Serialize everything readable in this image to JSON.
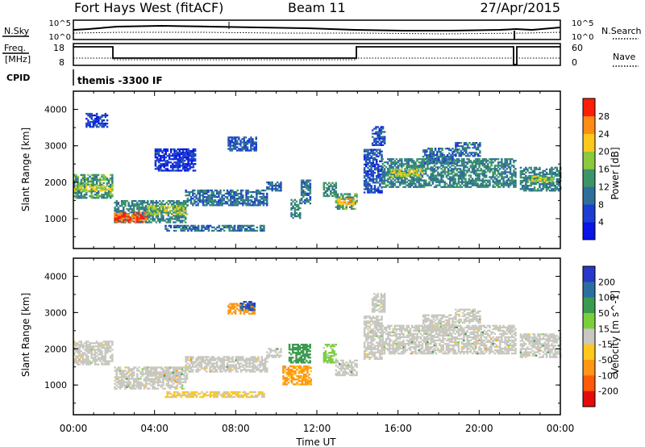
{
  "header": {
    "station": "Fort Hays West (fitACF)",
    "beam": "Beam 11",
    "date": "27/Apr/2015"
  },
  "noise_panel": {
    "left_label": "N.Sky",
    "left_ticks": [
      "10^5",
      "10^0"
    ],
    "right_ticks": [
      "10^5",
      "10^0"
    ],
    "right_label": "N.Search"
  },
  "freq_panel": {
    "left_label_1": "Freq.",
    "left_label_2": "[MHz]",
    "left_ticks": [
      "18",
      "8"
    ],
    "right_ticks": [
      "60",
      "0"
    ],
    "right_label": "Nave"
  },
  "cpid": {
    "label": "CPID",
    "program": "themis -3300 IF"
  },
  "colors": {
    "frame": "#000000",
    "ground_scatter": "#c8c8c0"
  },
  "chart_data": [
    {
      "type": "heatmap",
      "title": "",
      "xlabel": "",
      "ylabel": "Slant Range [km]",
      "x_ticks": [
        "00:00",
        "04:00",
        "08:00",
        "12:00",
        "16:00",
        "20:00",
        "00:00"
      ],
      "y_ticks": [
        "1000",
        "2000",
        "3000",
        "4000"
      ],
      "xlim_hours": [
        0,
        24
      ],
      "ylim_km": [
        180,
        4500
      ],
      "colorbar": {
        "label": "Power [dB]",
        "ticks": [
          "4",
          "8",
          "12",
          "16",
          "20",
          "24",
          "28"
        ],
        "range": [
          0,
          32
        ]
      },
      "bands": [
        {
          "t": [
            0.0,
            1.9
          ],
          "r": [
            1550,
            2200
          ],
          "v": 14
        },
        {
          "t": [
            0.0,
            1.9
          ],
          "r": [
            1750,
            1900
          ],
          "v": 20
        },
        {
          "t": [
            2.0,
            5.5
          ],
          "r": [
            880,
            1500
          ],
          "v": 12
        },
        {
          "t": [
            2.0,
            3.6
          ],
          "r": [
            900,
            1150
          ],
          "v": 28
        },
        {
          "t": [
            3.6,
            5.6
          ],
          "r": [
            1100,
            1350
          ],
          "v": 18
        },
        {
          "t": [
            5.5,
            9.5
          ],
          "r": [
            1350,
            1800
          ],
          "v": 10
        },
        {
          "t": [
            9.5,
            10.2
          ],
          "r": [
            1750,
            2000
          ],
          "v": 9
        },
        {
          "t": [
            4.5,
            9.4
          ],
          "r": [
            650,
            820
          ],
          "v": 10
        },
        {
          "t": [
            7.6,
            9.0
          ],
          "r": [
            2850,
            3250
          ],
          "v": 8
        },
        {
          "t": [
            0.6,
            1.7
          ],
          "r": [
            3500,
            3900
          ],
          "v": 6
        },
        {
          "t": [
            4.0,
            6.0
          ],
          "r": [
            2300,
            2900
          ],
          "v": 5
        },
        {
          "t": [
            10.7,
            11.2
          ],
          "r": [
            1000,
            1500
          ],
          "v": 12
        },
        {
          "t": [
            11.2,
            11.7
          ],
          "r": [
            1400,
            2050
          ],
          "v": 11
        },
        {
          "t": [
            12.3,
            12.9
          ],
          "r": [
            1600,
            2000
          ],
          "v": 13
        },
        {
          "t": [
            12.9,
            14.0
          ],
          "r": [
            1250,
            1700
          ],
          "v": 14
        },
        {
          "t": [
            13.0,
            13.8
          ],
          "r": [
            1380,
            1550
          ],
          "v": 24
        },
        {
          "t": [
            14.3,
            15.2
          ],
          "r": [
            1700,
            2900
          ],
          "v": 7
        },
        {
          "t": [
            14.7,
            15.3
          ],
          "r": [
            3000,
            3500
          ],
          "v": 7
        },
        {
          "t": [
            15.2,
            21.8
          ],
          "r": [
            1850,
            2650
          ],
          "v": 12
        },
        {
          "t": [
            15.6,
            17.2
          ],
          "r": [
            2150,
            2350
          ],
          "v": 20
        },
        {
          "t": [
            17.2,
            18.8
          ],
          "r": [
            2500,
            2950
          ],
          "v": 10
        },
        {
          "t": [
            18.8,
            20.0
          ],
          "r": [
            2700,
            3100
          ],
          "v": 9
        },
        {
          "t": [
            22.0,
            24.0
          ],
          "r": [
            1750,
            2400
          ],
          "v": 12
        },
        {
          "t": [
            22.4,
            23.6
          ],
          "r": [
            2000,
            2150
          ],
          "v": 18
        }
      ]
    },
    {
      "type": "heatmap",
      "title": "",
      "xlabel": "Time UT",
      "ylabel": "Slant Range [km]",
      "x_ticks": [
        "00:00",
        "04:00",
        "08:00",
        "12:00",
        "16:00",
        "20:00",
        "00:00"
      ],
      "y_ticks": [
        "1000",
        "2000",
        "3000",
        "4000"
      ],
      "xlim_hours": [
        0,
        24
      ],
      "ylim_km": [
        180,
        4500
      ],
      "colorbar": {
        "label": "Velocity [m s^-1]",
        "ticks": [
          "200",
          "100",
          "50",
          "15",
          "-15",
          "-50",
          "-100",
          "-200"
        ]
      },
      "bands": [
        {
          "t": [
            0.0,
            1.9
          ],
          "r": [
            1550,
            2200
          ],
          "v": 0
        },
        {
          "t": [
            2.0,
            5.5
          ],
          "r": [
            880,
            1500
          ],
          "v": 0
        },
        {
          "t": [
            3.6,
            5.6
          ],
          "r": [
            1100,
            1350
          ],
          "v": 0
        },
        {
          "t": [
            5.5,
            9.5
          ],
          "r": [
            1350,
            1800
          ],
          "v": 0
        },
        {
          "t": [
            9.5,
            10.2
          ],
          "r": [
            1750,
            2000
          ],
          "v": 0
        },
        {
          "t": [
            4.5,
            9.4
          ],
          "r": [
            650,
            820
          ],
          "v": -20
        },
        {
          "t": [
            7.6,
            8.9
          ],
          "r": [
            2950,
            3250
          ],
          "v": -70
        },
        {
          "t": [
            8.2,
            8.9
          ],
          "r": [
            3050,
            3300
          ],
          "v": 150
        },
        {
          "t": [
            10.3,
            11.7
          ],
          "r": [
            1000,
            1500
          ],
          "v": -60
        },
        {
          "t": [
            10.6,
            11.7
          ],
          "r": [
            1600,
            2100
          ],
          "v": 70
        },
        {
          "t": [
            12.3,
            12.9
          ],
          "r": [
            1600,
            2100
          ],
          "v": 30
        },
        {
          "t": [
            12.9,
            14.0
          ],
          "r": [
            1250,
            1700
          ],
          "v": 0
        },
        {
          "t": [
            14.3,
            15.2
          ],
          "r": [
            1700,
            2900
          ],
          "v": 0
        },
        {
          "t": [
            14.7,
            15.3
          ],
          "r": [
            3000,
            3500
          ],
          "v": 0
        },
        {
          "t": [
            15.2,
            21.8
          ],
          "r": [
            1850,
            2650
          ],
          "v": 0
        },
        {
          "t": [
            17.2,
            18.8
          ],
          "r": [
            2500,
            2950
          ],
          "v": 0
        },
        {
          "t": [
            18.8,
            20.0
          ],
          "r": [
            2700,
            3100
          ],
          "v": 0
        },
        {
          "t": [
            22.0,
            24.0
          ],
          "r": [
            1750,
            2400
          ],
          "v": 0
        }
      ]
    }
  ]
}
